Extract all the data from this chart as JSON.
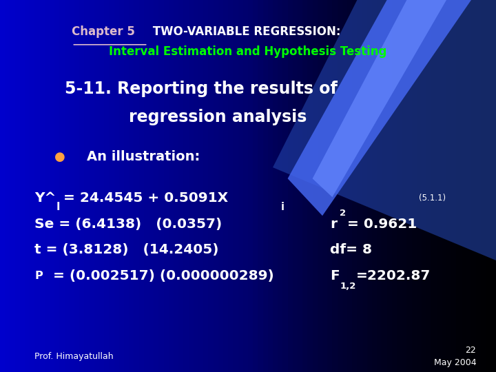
{
  "bg_color_left": "#0000CC",
  "bg_color_right": "#000010",
  "title_ch5_color": "#DDBBCC",
  "title_rest_color": "#FFFFFF",
  "title2_color": "#00FF00",
  "heading_color": "#FFFFFF",
  "body_color": "#FFFFFF",
  "bullet_color": "#FFA040",
  "footer_color": "#FFFFFF",
  "swoosh_color1": "#0044FF",
  "swoosh_color2": "#5588FF",
  "footer_left": "Prof. Himayatullah",
  "footer_right1": "22",
  "footer_right2": "May 2004"
}
